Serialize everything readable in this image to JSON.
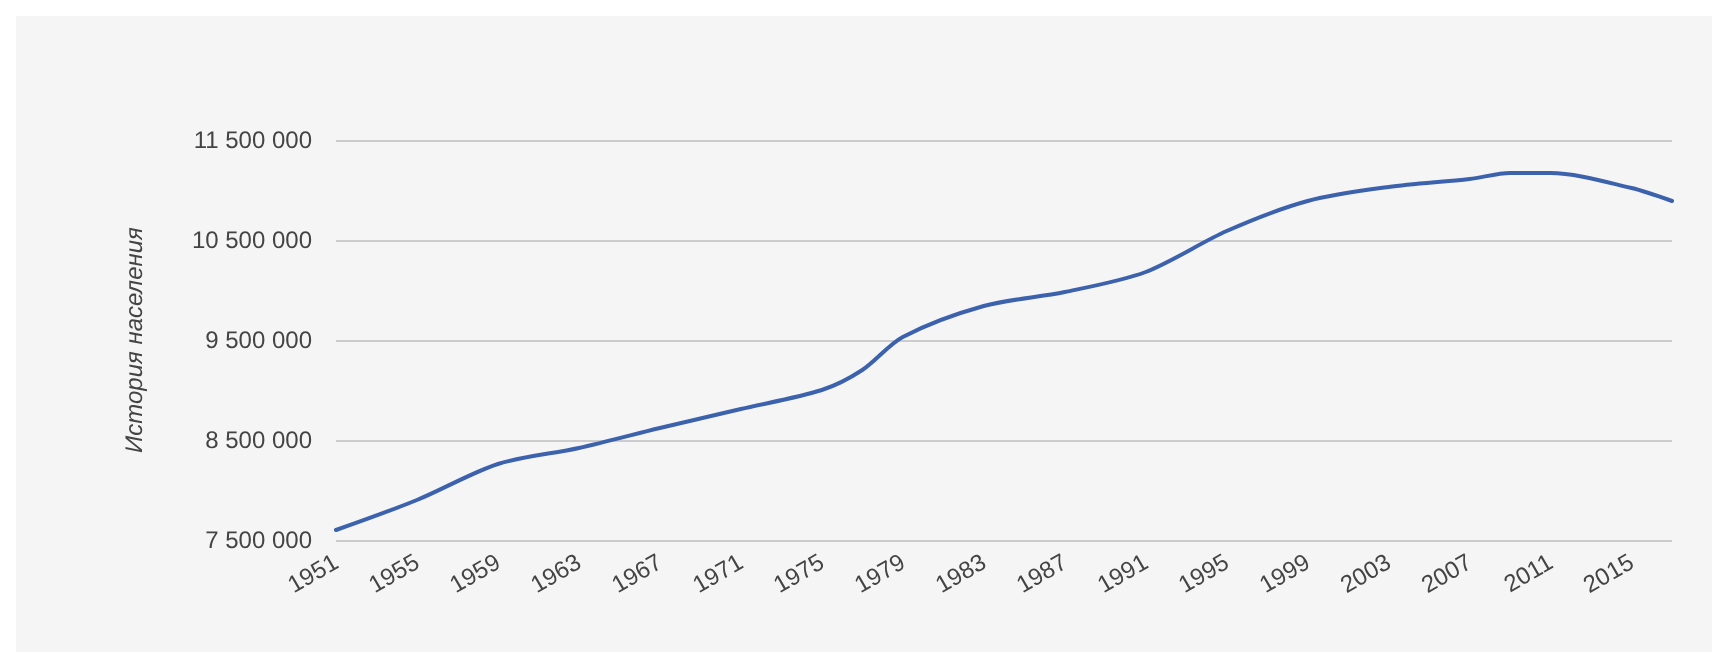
{
  "chart_data": {
    "type": "line",
    "ylabel": "История населения",
    "x": [
      1951,
      1955,
      1959,
      1963,
      1967,
      1971,
      1975,
      1977,
      1979,
      1983,
      1987,
      1991,
      1995,
      1999,
      2003,
      2007,
      2009,
      2011,
      2015,
      2017
    ],
    "series": [
      {
        "color": "#3d62ad",
        "values": [
          7600000,
          7900000,
          8260000,
          8420000,
          8620000,
          8810000,
          9000000,
          9200000,
          9530000,
          9840000,
          9980000,
          10180000,
          10590000,
          10890000,
          11030000,
          11110000,
          11170000,
          11170000,
          11020000,
          10890000
        ]
      }
    ],
    "xlim": [
      1951,
      2017
    ],
    "xticks": [
      1951,
      1955,
      1959,
      1963,
      1967,
      1971,
      1975,
      1979,
      1983,
      1987,
      1991,
      1995,
      1999,
      2003,
      2007,
      2011,
      2015
    ],
    "ylim": [
      7500000,
      11500000
    ],
    "yticks": [
      {
        "value": 7500000,
        "label": "7 500 000"
      },
      {
        "value": 8500000,
        "label": "8 500 000"
      },
      {
        "value": 9500000,
        "label": "9 500 000"
      },
      {
        "value": 10500000,
        "label": "10 500 000"
      },
      {
        "value": 11500000,
        "label": "11 500 000"
      }
    ],
    "grid": "y",
    "marker": "none",
    "line_style": "solid"
  }
}
